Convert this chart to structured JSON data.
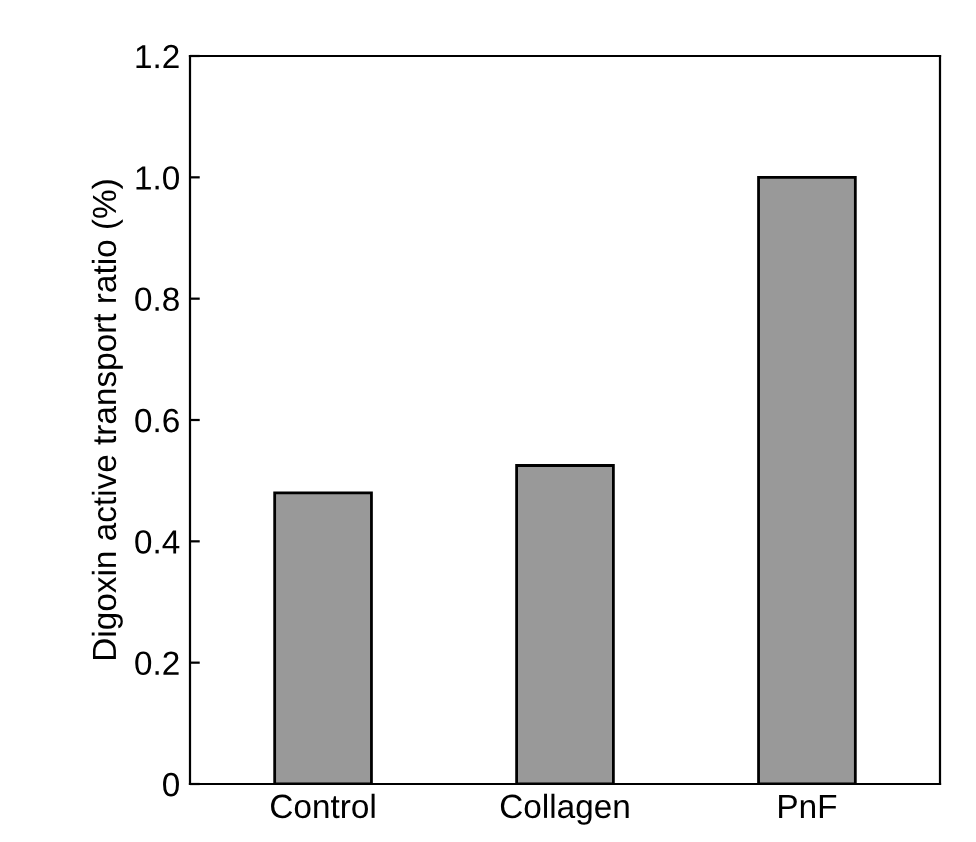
{
  "chart_data": {
    "type": "bar",
    "ylabel": "Digoxin active transport ratio (%)",
    "categories": [
      "Control",
      "Collagen",
      "PnF"
    ],
    "values": [
      0.48,
      0.525,
      1.0
    ],
    "color": "#999999",
    "ylim": [
      0,
      1.2
    ],
    "yticks": [
      0,
      0.2,
      0.4,
      0.6,
      0.8,
      {
        "value": 1.0,
        "label": "1.0"
      },
      1.2
    ],
    "grid": false,
    "legend": false
  }
}
